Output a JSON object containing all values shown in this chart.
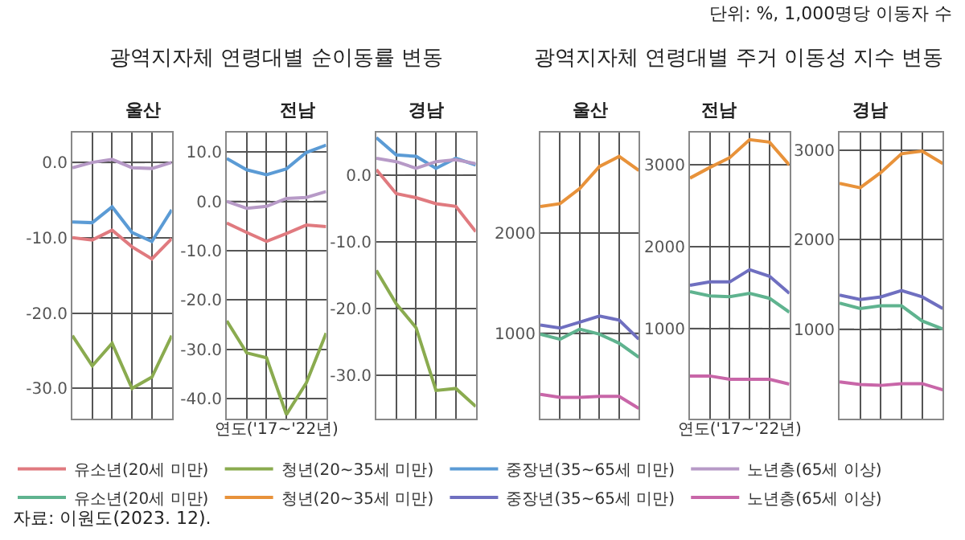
{
  "chart_data": [
    {
      "type": "line",
      "title": "울산",
      "categories": [
        null,
        null,
        null,
        null,
        null,
        null
      ],
      "ylim": [
        -34,
        4
      ],
      "yticks": [
        {
          "value": 0,
          "label": "0.0"
        },
        {
          "value": -10,
          "label": "-10.0"
        },
        {
          "value": -20,
          "label": "-20.0"
        },
        {
          "value": -30,
          "label": "-30.0"
        }
      ],
      "tick_labels": "y",
      "grid": true,
      "legend": "bottom",
      "marker": "none",
      "line_style": "solid",
      "ref_lines": [
        {
          "axis": "y",
          "value": 0,
          "line_style": "dashed",
          "color": "#aaaaaa"
        }
      ],
      "annotations": [
        "자료: 이원도(2023. 12)."
      ],
      "series": [
        {
          "name": "유소년(20세 미만)",
          "color": "#e07a7f",
          "values": [
            -10,
            -10.3,
            -9,
            -11.2,
            -12.8,
            -10.1
          ]
        },
        {
          "name": "청년(20~35세 미만)",
          "color": "#8aab4f",
          "values": [
            -23,
            -27,
            -24,
            -30,
            -28.5,
            -23
          ]
        },
        {
          "name": "중장년(35~65세 미만)",
          "color": "#5b9bd5",
          "values": [
            -7.9,
            -8,
            -5.9,
            -9.3,
            -10.5,
            -6.3
          ]
        },
        {
          "name": "노년층(65세 이상)",
          "color": "#b79ac7",
          "values": [
            -0.7,
            0,
            0.4,
            -0.7,
            -0.8,
            0
          ]
        }
      ]
    },
    {
      "type": "line",
      "title": "전남",
      "xlabel": "연도('17~'22년)",
      "categories": [
        null,
        null,
        null,
        null,
        null,
        null
      ],
      "ylim": [
        -44,
        14
      ],
      "yticks": [
        {
          "value": 10,
          "label": "10.0"
        },
        {
          "value": 0,
          "label": "0.0"
        },
        {
          "value": -10,
          "label": "-10.0"
        },
        {
          "value": -20,
          "label": "-20.0"
        },
        {
          "value": -30,
          "label": "-30.0"
        },
        {
          "value": -40,
          "label": "-40.0"
        }
      ],
      "tick_labels": "y",
      "grid": true,
      "marker": "none",
      "line_style": "solid",
      "ref_lines": [
        {
          "axis": "y",
          "value": 0,
          "line_style": "dashed",
          "color": "#aaaaaa"
        }
      ],
      "annotations": [
        "광역지자체 연령대별 순이동률 변동"
      ],
      "series": [
        {
          "color": "#e07a7f",
          "values": [
            -4.4,
            -6.3,
            -8.1,
            -6.5,
            -4.8,
            -5.1
          ]
        },
        {
          "color": "#8aab4f",
          "values": [
            -24.2,
            -30.7,
            -31.7,
            -43.2,
            -36.8,
            -26.7
          ]
        },
        {
          "color": "#5b9bd5",
          "values": [
            8.7,
            6.4,
            5.4,
            6.6,
            9.9,
            11.4
          ]
        },
        {
          "color": "#b79ac7",
          "values": [
            0,
            -1.4,
            -1,
            0.6,
            0.8,
            2
          ]
        }
      ]
    },
    {
      "type": "line",
      "title": "경남",
      "categories": [
        null,
        null,
        null,
        null,
        null,
        null
      ],
      "ylim": [
        -36.5,
        6.4
      ],
      "yticks": [
        {
          "value": 0,
          "label": "0.0"
        },
        {
          "value": -10,
          "label": "-10.0"
        },
        {
          "value": -20,
          "label": "-20.0"
        },
        {
          "value": -30,
          "label": "-30.0"
        }
      ],
      "tick_labels": "y",
      "grid": true,
      "marker": "none",
      "line_style": "solid",
      "ref_lines": [
        {
          "axis": "y",
          "value": 0,
          "line_style": "dashed",
          "color": "#aaaaaa"
        }
      ],
      "series": [
        {
          "color": "#e07a7f",
          "values": [
            0.8,
            -2.8,
            -3.4,
            -4.3,
            -4.7,
            -8.5
          ]
        },
        {
          "color": "#8aab4f",
          "values": [
            -14.3,
            -19.3,
            -22.9,
            -32.3,
            -32,
            -34.7
          ]
        },
        {
          "color": "#5b9bd5",
          "values": [
            5.6,
            3,
            2.8,
            1,
            2.5,
            1.5
          ]
        },
        {
          "color": "#b79ac7",
          "values": [
            2.5,
            2,
            1,
            2,
            2.3,
            1.7
          ]
        }
      ]
    },
    {
      "type": "line",
      "title": "울산",
      "categories": [
        null,
        null,
        null,
        null,
        null,
        null
      ],
      "ylim": [
        150,
        3000
      ],
      "yticks": [
        1000,
        2000
      ],
      "tick_labels": "y",
      "grid": true,
      "legend": "bottom",
      "marker": "none",
      "line_style": "solid",
      "ref_lines": [
        {
          "axis": "y",
          "value": 1000,
          "line_style": "dashed",
          "color": "#aaaaaa"
        }
      ],
      "series": [
        {
          "name": "유소년(20세 미만)",
          "color": "#5fb38f",
          "values": [
            990,
            940,
            1040,
            990,
            900,
            760
          ]
        },
        {
          "name": "청년(20~35세 미만)",
          "color": "#e8923a",
          "values": [
            2260,
            2290,
            2440,
            2660,
            2760,
            2620
          ]
        },
        {
          "name": "중장년(35~65세 미만)",
          "color": "#6f6fc0",
          "values": [
            1080,
            1050,
            1110,
            1170,
            1130,
            940
          ]
        },
        {
          "name": "노년층(65세 이상)",
          "color": "#c866a8",
          "values": [
            390,
            360,
            360,
            370,
            370,
            250
          ]
        }
      ]
    },
    {
      "type": "line",
      "title": "전남",
      "xlabel": "연도('17~'22년)",
      "categories": [
        null,
        null,
        null,
        null,
        null,
        null
      ],
      "ylim": [
        -100,
        3400
      ],
      "yticks": [
        1000,
        2000,
        3000
      ],
      "tick_labels": "y",
      "grid": true,
      "marker": "none",
      "line_style": "solid",
      "ref_lines": [
        {
          "axis": "y",
          "value": 1000,
          "line_style": "dashed",
          "color": "#aaaaaa"
        }
      ],
      "annotations": [
        "광역지자체 연령대별 주거 이동성 지수 변동"
      ],
      "series": [
        {
          "color": "#5fb38f",
          "values": [
            1450,
            1400,
            1390,
            1430,
            1370,
            1200
          ]
        },
        {
          "color": "#e8923a",
          "values": [
            2840,
            2970,
            3090,
            3310,
            3280,
            3000
          ]
        },
        {
          "color": "#6f6fc0",
          "values": [
            1530,
            1570,
            1570,
            1720,
            1640,
            1430
          ]
        },
        {
          "color": "#c866a8",
          "values": [
            420,
            420,
            380,
            380,
            380,
            320
          ]
        }
      ]
    },
    {
      "type": "line",
      "title": "경남",
      "categories": [
        null,
        null,
        null,
        null,
        null,
        null
      ],
      "ylim": [
        0,
        3200
      ],
      "yticks": [
        1000,
        2000,
        3000
      ],
      "tick_labels": "y",
      "grid": true,
      "marker": "none",
      "line_style": "solid",
      "ref_lines": [
        {
          "axis": "y",
          "value": 1000,
          "line_style": "dashed",
          "color": "#aaaaaa"
        }
      ],
      "annotations": [
        "단위: %, 1,000명당 이동자 수"
      ],
      "series": [
        {
          "color": "#5fb38f",
          "values": [
            1290,
            1230,
            1260,
            1260,
            1090,
            1000
          ]
        },
        {
          "color": "#e8923a",
          "values": [
            2630,
            2580,
            2750,
            2960,
            2990,
            2850
          ]
        },
        {
          "color": "#6f6fc0",
          "values": [
            1380,
            1330,
            1360,
            1430,
            1360,
            1230
          ]
        },
        {
          "color": "#c866a8",
          "values": [
            410,
            380,
            370,
            390,
            390,
            320
          ]
        }
      ]
    }
  ]
}
